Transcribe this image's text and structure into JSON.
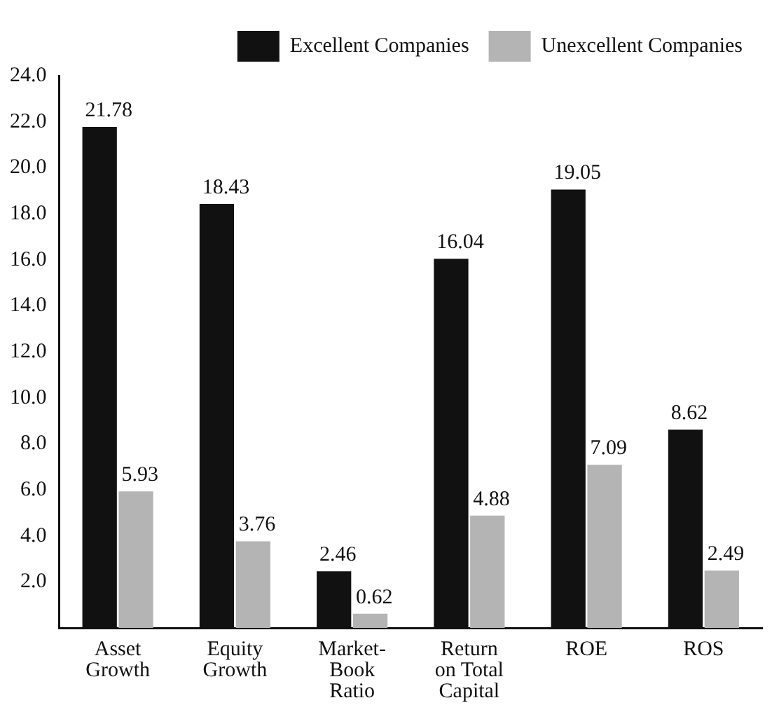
{
  "chart_data": {
    "type": "bar",
    "categories": [
      "Asset Growth",
      "Equity Growth",
      "Market-Book Ratio",
      "Return on Total Capital",
      "ROE",
      "ROS"
    ],
    "series": [
      {
        "name": "Excellent Companies",
        "color": "#111111",
        "values": [
          21.78,
          18.43,
          2.46,
          16.04,
          19.05,
          8.62
        ]
      },
      {
        "name": "Unexcellent Companies",
        "color": "#b4b4b4",
        "values": [
          5.93,
          3.76,
          0.62,
          4.88,
          7.09,
          2.49
        ]
      }
    ],
    "ylim": [
      0,
      24
    ],
    "yticks": [
      {
        "value": 2,
        "label": "2.0"
      },
      {
        "value": 4,
        "label": "4.0"
      },
      {
        "value": 6,
        "label": "6.0"
      },
      {
        "value": 8,
        "label": "8.0"
      },
      {
        "value": 10,
        "label": "10.0"
      },
      {
        "value": 12,
        "label": "12.0"
      },
      {
        "value": 14,
        "label": "14.0"
      },
      {
        "value": 16,
        "label": "16.0"
      },
      {
        "value": 18,
        "label": "18.0"
      },
      {
        "value": 20,
        "label": "20.0"
      },
      {
        "value": 22,
        "label": "22.0"
      },
      {
        "value": 24,
        "label": "24.0"
      }
    ],
    "grid": false,
    "legend": "top",
    "data_labels": true
  }
}
